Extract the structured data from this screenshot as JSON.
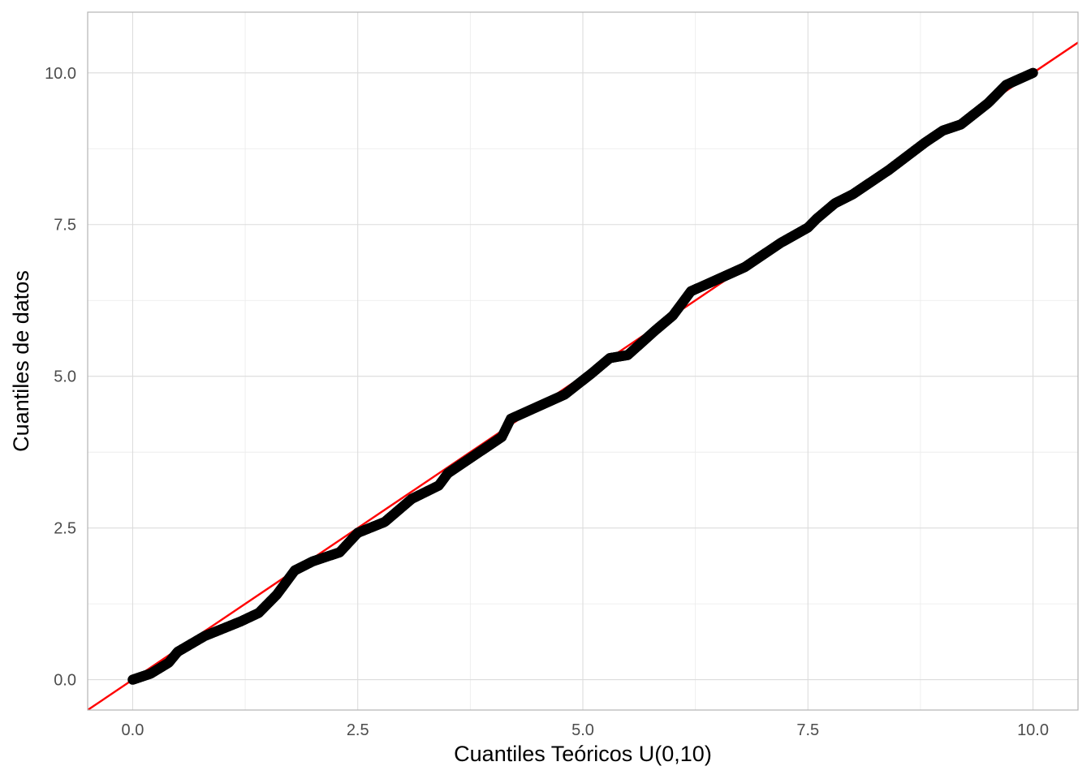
{
  "chart_data": {
    "type": "scatter",
    "title": "",
    "xlabel": "Cuantiles Teóricos U(0,10)",
    "ylabel": "Cuantiles de datos",
    "xlim": [
      -0.5,
      10.5
    ],
    "ylim": [
      -0.5,
      11.0
    ],
    "x_ticks": [
      0.0,
      2.5,
      5.0,
      7.5,
      10.0
    ],
    "x_tick_labels": [
      "0.0",
      "2.5",
      "5.0",
      "7.5",
      "10.0"
    ],
    "y_ticks": [
      0.0,
      2.5,
      5.0,
      7.5,
      10.0
    ],
    "y_tick_labels": [
      "0.0",
      "2.5",
      "5.0",
      "7.5",
      "10.0"
    ],
    "grid": true,
    "legend": "none",
    "colors": {
      "points": "#000000",
      "reference_line": "#ff0000",
      "grid": "#ebebeb",
      "panel_border": "#b3b3b3"
    },
    "reference_line": {
      "slope": 1,
      "intercept": 0
    },
    "series": [
      {
        "points": [
          [
            0.0,
            0.0
          ],
          [
            0.2,
            0.1
          ],
          [
            0.4,
            0.28
          ],
          [
            0.5,
            0.46
          ],
          [
            0.8,
            0.72
          ],
          [
            1.2,
            0.96
          ],
          [
            1.4,
            1.1
          ],
          [
            1.6,
            1.4
          ],
          [
            1.8,
            1.8
          ],
          [
            2.0,
            1.95
          ],
          [
            2.3,
            2.1
          ],
          [
            2.5,
            2.42
          ],
          [
            2.8,
            2.6
          ],
          [
            3.1,
            2.98
          ],
          [
            3.4,
            3.2
          ],
          [
            3.5,
            3.4
          ],
          [
            4.0,
            3.9
          ],
          [
            4.1,
            4.0
          ],
          [
            4.2,
            4.3
          ],
          [
            4.5,
            4.5
          ],
          [
            4.8,
            4.7
          ],
          [
            5.1,
            5.05
          ],
          [
            5.3,
            5.3
          ],
          [
            5.5,
            5.35
          ],
          [
            5.8,
            5.75
          ],
          [
            6.0,
            6.0
          ],
          [
            6.2,
            6.4
          ],
          [
            6.5,
            6.6
          ],
          [
            6.8,
            6.8
          ],
          [
            7.0,
            7.0
          ],
          [
            7.2,
            7.2
          ],
          [
            7.5,
            7.45
          ],
          [
            7.6,
            7.6
          ],
          [
            7.8,
            7.85
          ],
          [
            8.0,
            8.0
          ],
          [
            8.4,
            8.4
          ],
          [
            8.8,
            8.85
          ],
          [
            9.0,
            9.05
          ],
          [
            9.2,
            9.15
          ],
          [
            9.5,
            9.5
          ],
          [
            9.7,
            9.8
          ],
          [
            10.0,
            10.0
          ]
        ]
      }
    ]
  }
}
